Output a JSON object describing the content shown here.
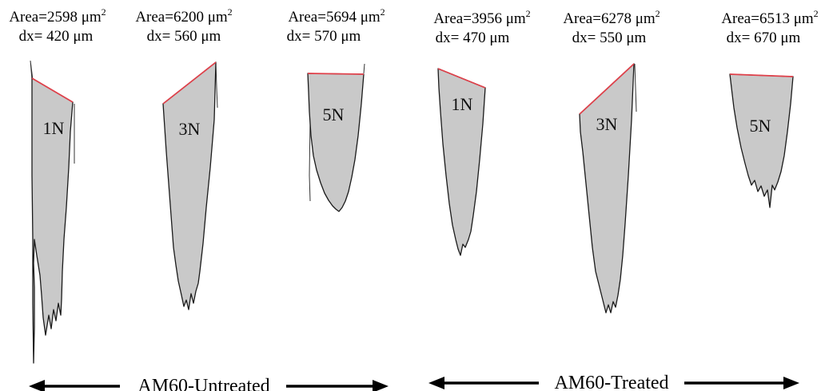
{
  "profiles": [
    {
      "id": "untreated-1n",
      "area_prefix": "Area=2598 μm",
      "area_exp": "2",
      "dx_text": "dx= 420 μm",
      "load": "1N"
    },
    {
      "id": "untreated-3n",
      "area_prefix": "Area=6200 μm",
      "area_exp": "2",
      "dx_text": "dx= 560 μm",
      "load": "3N"
    },
    {
      "id": "untreated-5n",
      "area_prefix": "Area=5694 μm",
      "area_exp": "2",
      "dx_text": "dx= 570 μm",
      "load": "5N"
    },
    {
      "id": "treated-1n",
      "area_prefix": "Area=3956 μm",
      "area_exp": "2",
      "dx_text": "dx= 470 μm",
      "load": "1N"
    },
    {
      "id": "treated-3n",
      "area_prefix": "Area=6278 μm",
      "area_exp": "2",
      "dx_text": "dx= 550 μm",
      "load": "3N"
    },
    {
      "id": "treated-5n",
      "area_prefix": "Area=6513 μm",
      "area_exp": "2",
      "dx_text": "dx= 670 μm",
      "load": "5N"
    }
  ],
  "groups": {
    "untreated": "AM60-Untreated",
    "treated": "AM60-Treated"
  },
  "colors": {
    "fill": "#c9c9c9",
    "outline": "#1a1a1a",
    "surface_line": "#e0404a"
  }
}
